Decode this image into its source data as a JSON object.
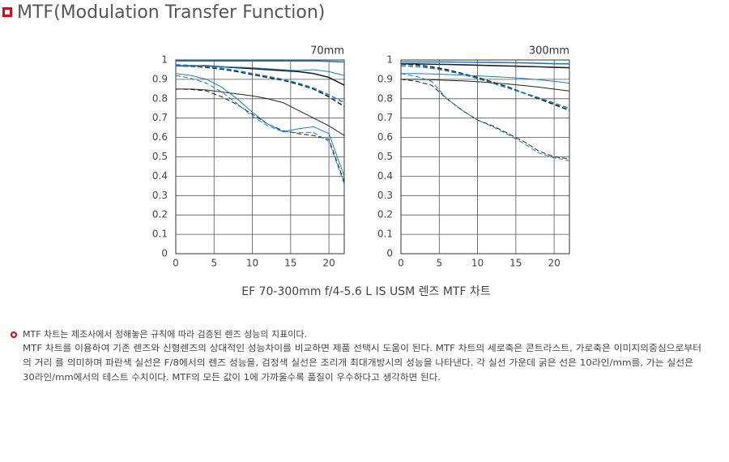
{
  "header": {
    "title": "MTF(Modulation Transfer Function)"
  },
  "chart_data": [
    {
      "type": "line",
      "title": "70mm",
      "x": [
        0,
        2,
        4,
        6,
        8,
        10,
        12,
        14,
        16,
        18,
        20,
        22
      ],
      "xlim": [
        0,
        22
      ],
      "xticks": [
        0,
        5,
        10,
        15,
        20
      ],
      "ylim": [
        0,
        1
      ],
      "yticks": [
        0,
        0.1,
        0.2,
        0.3,
        0.4,
        0.5,
        0.6,
        0.7,
        0.8,
        0.9,
        1
      ],
      "grid": true,
      "series": [
        {
          "color": "#1a7fc4",
          "dash": false,
          "linewidth": 1.6,
          "values": [
            0.995,
            0.995,
            0.995,
            0.995,
            0.995,
            0.995,
            0.995,
            0.995,
            0.995,
            0.995,
            0.993,
            0.99
          ]
        },
        {
          "color": "#222222",
          "dash": false,
          "linewidth": 1.6,
          "values": [
            0.97,
            0.97,
            0.97,
            0.965,
            0.96,
            0.955,
            0.95,
            0.945,
            0.94,
            0.93,
            0.91,
            0.87
          ]
        },
        {
          "color": "#222222",
          "dash": true,
          "linewidth": 1.6,
          "values": [
            0.97,
            0.968,
            0.962,
            0.953,
            0.94,
            0.925,
            0.91,
            0.895,
            0.875,
            0.85,
            0.81,
            0.76
          ]
        },
        {
          "color": "#1a7fc4",
          "dash": true,
          "linewidth": 1.6,
          "values": [
            0.975,
            0.972,
            0.966,
            0.957,
            0.945,
            0.93,
            0.915,
            0.9,
            0.88,
            0.855,
            0.82,
            0.78
          ]
        },
        {
          "color": "#1a7fc4",
          "dash": false,
          "linewidth": 1,
          "values": [
            0.97,
            0.97,
            0.968,
            0.965,
            0.963,
            0.96,
            0.955,
            0.95,
            0.945,
            0.95,
            0.94,
            0.92
          ]
        },
        {
          "color": "#222222",
          "dash": false,
          "linewidth": 1,
          "values": [
            0.85,
            0.85,
            0.845,
            0.835,
            0.825,
            0.815,
            0.8,
            0.78,
            0.74,
            0.7,
            0.66,
            0.61
          ]
        },
        {
          "color": "#222222",
          "dash": true,
          "linewidth": 1,
          "values": [
            0.85,
            0.848,
            0.84,
            0.81,
            0.77,
            0.72,
            0.67,
            0.635,
            0.62,
            0.61,
            0.59,
            0.37
          ]
        },
        {
          "color": "#1a7fc4",
          "dash": false,
          "linewidth": 1,
          "values": [
            0.93,
            0.92,
            0.9,
            0.86,
            0.8,
            0.73,
            0.67,
            0.63,
            0.645,
            0.655,
            0.62,
            0.4
          ]
        },
        {
          "color": "#1a7fc4",
          "dash": true,
          "linewidth": 1,
          "values": [
            0.92,
            0.905,
            0.88,
            0.835,
            0.775,
            0.71,
            0.66,
            0.63,
            0.625,
            0.625,
            0.58,
            0.36
          ]
        }
      ]
    },
    {
      "type": "line",
      "title": "300mm",
      "x": [
        0,
        2,
        4,
        6,
        8,
        10,
        12,
        14,
        16,
        18,
        20,
        22
      ],
      "xlim": [
        0,
        22
      ],
      "xticks": [
        0,
        5,
        10,
        15,
        20
      ],
      "ylim": [
        0,
        1
      ],
      "yticks": [
        0,
        0.1,
        0.2,
        0.3,
        0.4,
        0.5,
        0.6,
        0.7,
        0.8,
        0.9,
        1
      ],
      "grid": true,
      "series": [
        {
          "color": "#1a7fc4",
          "dash": false,
          "linewidth": 1.6,
          "values": [
            0.99,
            0.99,
            0.99,
            0.99,
            0.989,
            0.988,
            0.987,
            0.986,
            0.985,
            0.983,
            0.981,
            0.98
          ]
        },
        {
          "color": "#222222",
          "dash": false,
          "linewidth": 1.6,
          "values": [
            0.98,
            0.98,
            0.978,
            0.977,
            0.975,
            0.973,
            0.971,
            0.969,
            0.967,
            0.965,
            0.962,
            0.96
          ]
        },
        {
          "color": "#222222",
          "dash": true,
          "linewidth": 1.6,
          "values": [
            0.98,
            0.975,
            0.965,
            0.95,
            0.93,
            0.91,
            0.885,
            0.86,
            0.83,
            0.8,
            0.77,
            0.74
          ]
        },
        {
          "color": "#1a7fc4",
          "dash": true,
          "linewidth": 1.6,
          "values": [
            0.97,
            0.966,
            0.958,
            0.944,
            0.926,
            0.905,
            0.88,
            0.855,
            0.83,
            0.805,
            0.777,
            0.75
          ]
        },
        {
          "color": "#1a7fc4",
          "dash": false,
          "linewidth": 1,
          "values": [
            0.93,
            0.93,
            0.928,
            0.925,
            0.922,
            0.918,
            0.914,
            0.91,
            0.905,
            0.898,
            0.89,
            0.88
          ]
        },
        {
          "color": "#222222",
          "dash": false,
          "linewidth": 1,
          "values": [
            0.9,
            0.9,
            0.898,
            0.895,
            0.892,
            0.888,
            0.882,
            0.876,
            0.868,
            0.86,
            0.85,
            0.84
          ]
        },
        {
          "color": "#222222",
          "dash": true,
          "linewidth": 1,
          "values": [
            0.9,
            0.89,
            0.87,
            0.8,
            0.74,
            0.69,
            0.66,
            0.62,
            0.58,
            0.53,
            0.5,
            0.49
          ]
        },
        {
          "color": "#1a7fc4",
          "dash": true,
          "linewidth": 1,
          "values": [
            0.93,
            0.915,
            0.89,
            0.8,
            0.74,
            0.69,
            0.655,
            0.615,
            0.57,
            0.52,
            0.495,
            0.48
          ]
        }
      ]
    }
  ],
  "caption": "EF 70-300mm f/4-5.6 L IS USM 렌즈 MTF 차트",
  "notes": {
    "lines": [
      "MTF 차트는 제조사에서 정해놓은 규칙에 따라 검증된 렌즈 성능의 지표이다.",
      "MTF 차트를 이용하여 기존 렌즈와 신형렌즈의 상대적인 성능차이를 비교하면 제품 선택시 도움이 된다. MTF 차트의 세로축은 콘트라스트, 가로축은 이미지의중심으로부터",
      "의 거리 를 의미하며 파란색 실선은 F/8에서의  렌즈 성능을, 검정색 실선은 조리개 최대개방시의 성능을 나타낸다. 각 실선 가운데 굵은 선은 10라인/mm를, 가는 실선은",
      "30라인/mm에서의 테스트 수치이다. MTF의 모든 값이 1에 가까울수록 품질이 우수하다고 생각하면 된다."
    ]
  }
}
